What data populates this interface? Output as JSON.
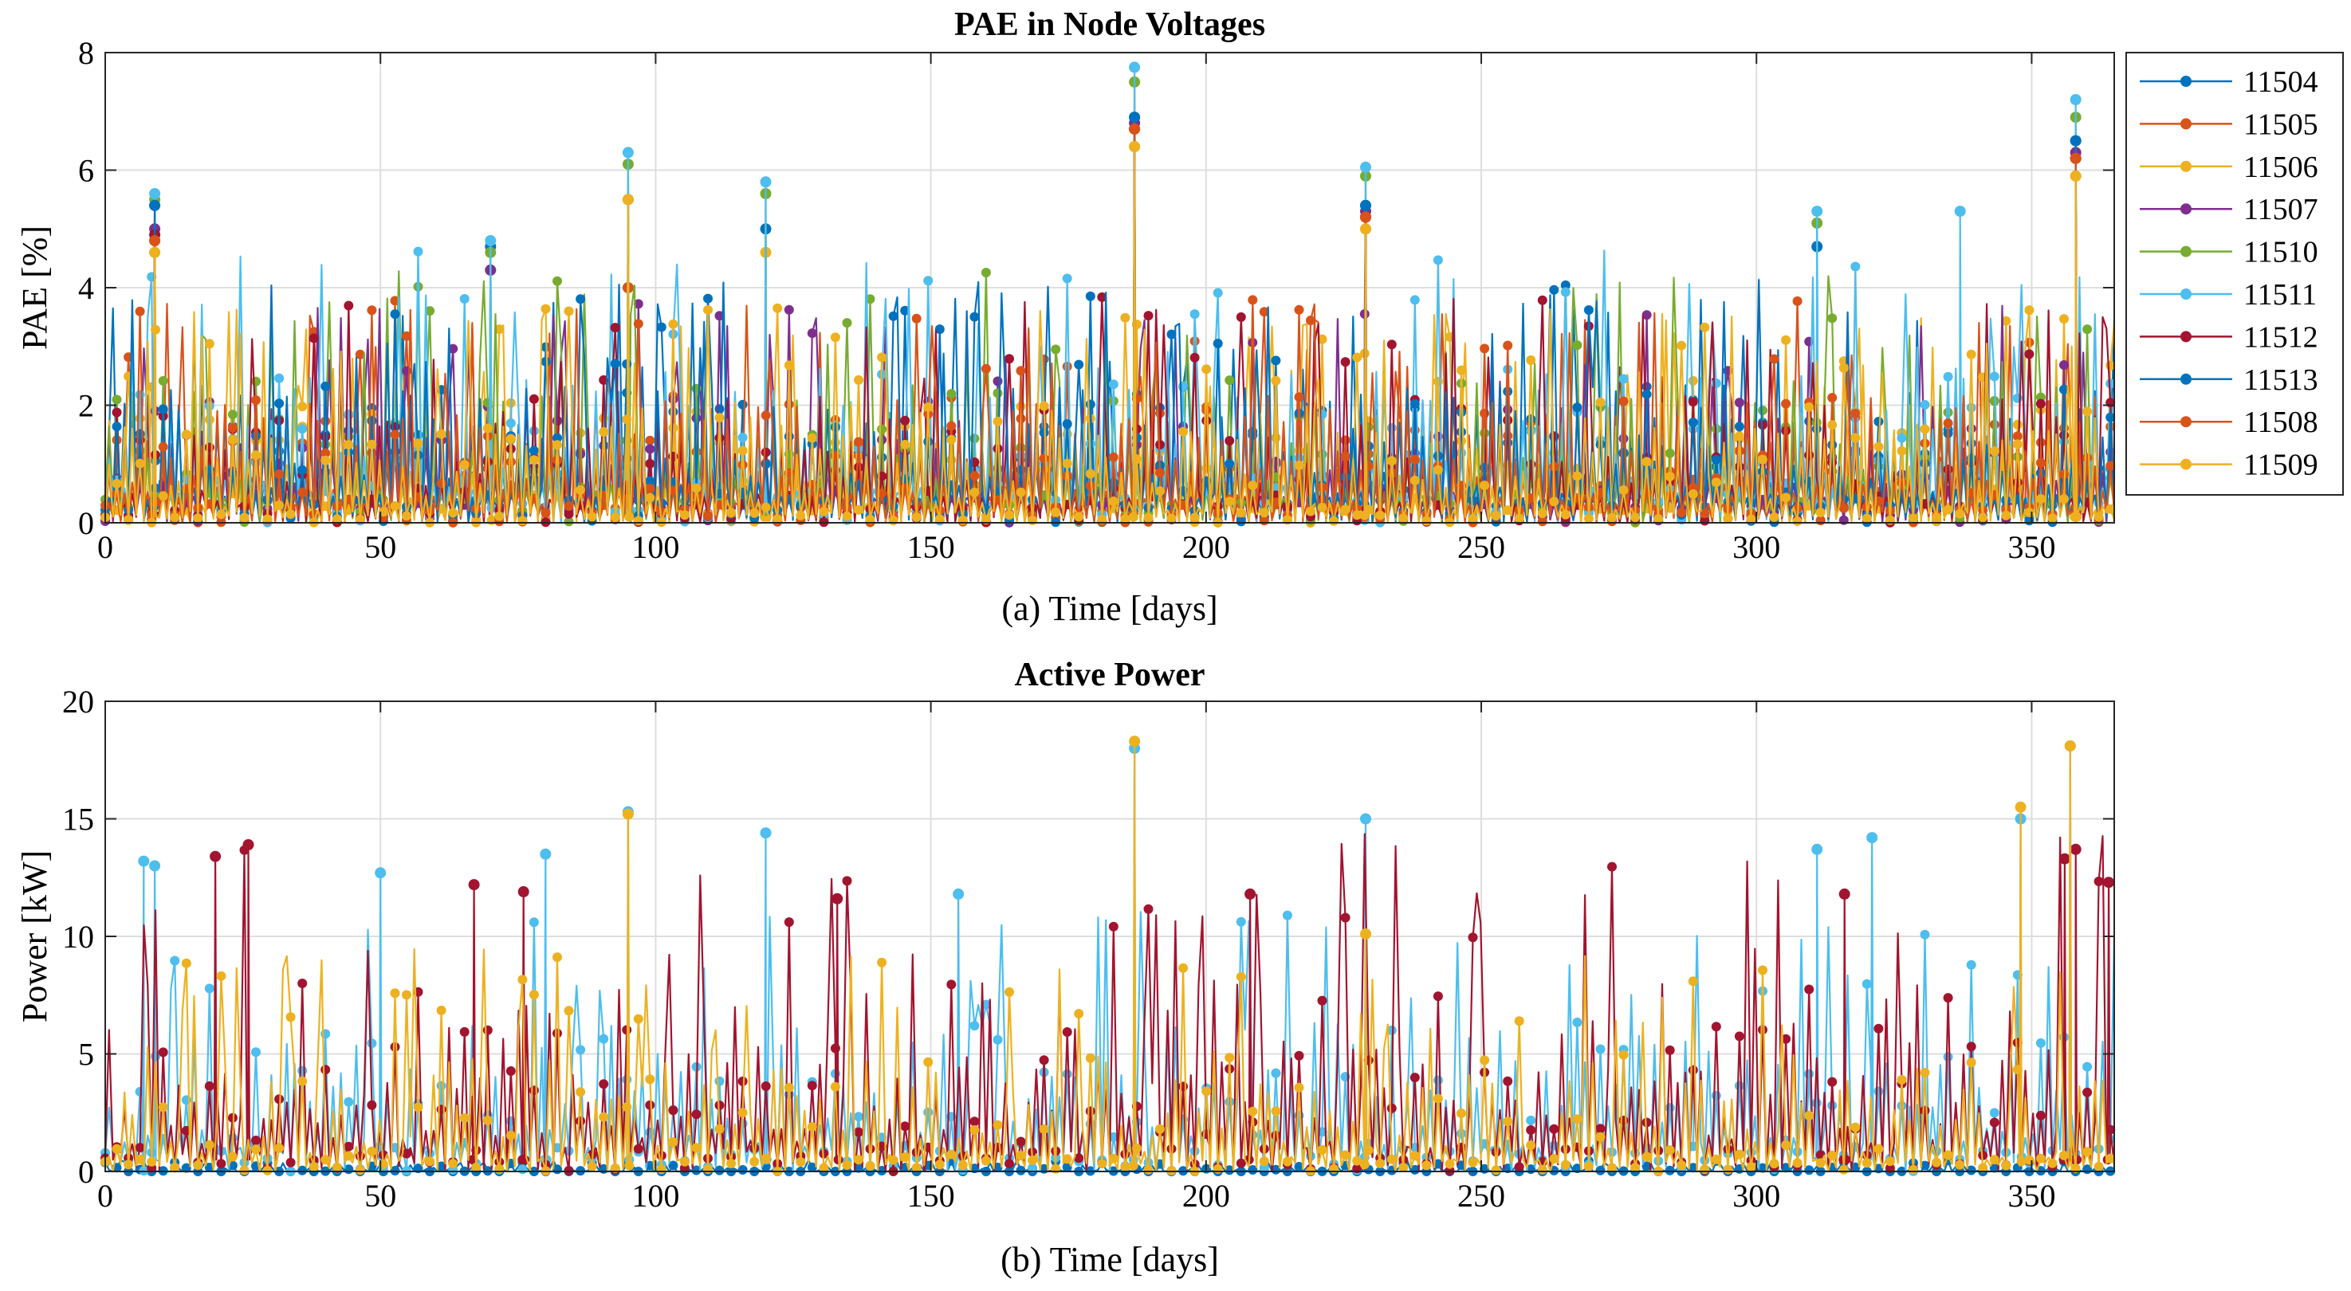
{
  "chart_data": [
    {
      "type": "line",
      "title": "PAE in Node Voltages",
      "xlabel": "(a) Time [days]",
      "ylabel": "PAE [%]",
      "xlim": [
        0,
        365
      ],
      "ylim": [
        0,
        8
      ],
      "xticks": [
        "0",
        "50",
        "100",
        "150",
        "200",
        "250",
        "300",
        "350"
      ],
      "yticks": [
        "0",
        "2",
        "4",
        "6",
        "8"
      ],
      "grid": true,
      "legend_position": "outside-right",
      "markers": "filled circles on every sample, stem-like dense spikes",
      "series": [
        {
          "name": "11504",
          "color": "#0072BD",
          "peaks": [
            [
              9,
              5.4
            ],
            [
              70,
              4.7
            ],
            [
              95,
              5.5
            ],
            [
              120,
              5.0
            ],
            [
              187,
              6.9
            ],
            [
              229,
              5.4
            ],
            [
              311,
              4.7
            ],
            [
              358,
              6.5
            ]
          ],
          "baseline": [
            0.4,
            2.6
          ]
        },
        {
          "name": "11505",
          "color": "#D95319",
          "peaks": [
            [
              9,
              4.8
            ],
            [
              95,
              4.0
            ],
            [
              187,
              6.7
            ],
            [
              229,
              5.2
            ],
            [
              358,
              6.2
            ]
          ],
          "baseline": [
            0.3,
            2.4
          ]
        },
        {
          "name": "11506",
          "color": "#EDB120",
          "peaks": [
            [
              9,
              4.6
            ],
            [
              70,
              4.3
            ],
            [
              95,
              5.5
            ],
            [
              120,
              4.6
            ],
            [
              187,
              6.4
            ],
            [
              229,
              5.0
            ],
            [
              358,
              5.9
            ]
          ],
          "baseline": [
            0.2,
            2.3
          ]
        },
        {
          "name": "11507",
          "color": "#7E2F8E",
          "peaks": [
            [
              9,
              5.0
            ],
            [
              70,
              4.3
            ],
            [
              187,
              6.8
            ],
            [
              229,
              5.3
            ],
            [
              358,
              6.3
            ]
          ],
          "baseline": [
            0.3,
            2.4
          ]
        },
        {
          "name": "11510",
          "color": "#77AC30",
          "peaks": [
            [
              9,
              5.5
            ],
            [
              70,
              4.6
            ],
            [
              95,
              6.1
            ],
            [
              120,
              5.6
            ],
            [
              187,
              7.5
            ],
            [
              229,
              5.9
            ],
            [
              311,
              5.1
            ],
            [
              358,
              6.9
            ]
          ],
          "baseline": [
            0.4,
            2.7
          ]
        },
        {
          "name": "11511",
          "color": "#4DBEEE",
          "peaks": [
            [
              9,
              5.6
            ],
            [
              70,
              4.8
            ],
            [
              95,
              6.3
            ],
            [
              120,
              5.8
            ],
            [
              187,
              7.75
            ],
            [
              229,
              6.05
            ],
            [
              311,
              5.3
            ],
            [
              337,
              5.3
            ],
            [
              358,
              7.2
            ]
          ],
          "baseline": [
            0.5,
            2.9
          ]
        },
        {
          "name": "11512",
          "color": "#A2142F",
          "peaks": [
            [
              9,
              4.9
            ],
            [
              187,
              6.7
            ],
            [
              229,
              5.2
            ],
            [
              358,
              6.2
            ]
          ],
          "baseline": [
            0.3,
            2.4
          ]
        },
        {
          "name": "11513",
          "color": "#0072BD",
          "peaks": [
            [
              9,
              5.4
            ],
            [
              187,
              6.9
            ],
            [
              229,
              5.4
            ],
            [
              358,
              6.5
            ]
          ],
          "baseline": [
            0.4,
            2.6
          ]
        },
        {
          "name": "11508",
          "color": "#D95319",
          "peaks": [
            [
              9,
              4.8
            ],
            [
              187,
              6.7
            ],
            [
              229,
              5.2
            ],
            [
              358,
              6.2
            ]
          ],
          "baseline": [
            0.3,
            2.4
          ]
        },
        {
          "name": "11509",
          "color": "#EDB120",
          "peaks": [
            [
              9,
              4.6
            ],
            [
              95,
              5.5
            ],
            [
              187,
              6.4
            ],
            [
              229,
              5.0
            ],
            [
              358,
              5.9
            ]
          ],
          "baseline": [
            0.2,
            2.3
          ]
        }
      ]
    },
    {
      "type": "line",
      "title": "Active Power",
      "xlabel": "(b) Time [days]",
      "ylabel": "Power [kW]",
      "xlim": [
        0,
        365
      ],
      "ylim": [
        0,
        20
      ],
      "xticks": [
        "0",
        "50",
        "100",
        "150",
        "200",
        "250",
        "300",
        "350"
      ],
      "yticks": [
        "0",
        "5",
        "10",
        "15",
        "20"
      ],
      "grid": true,
      "markers": "filled circles on every sample, stem-like dense spikes",
      "series": [
        {
          "name": "11504",
          "color": "#0072BD",
          "peaks": [],
          "baseline": [
            0,
            0.3
          ]
        },
        {
          "name": "11511",
          "color": "#4DBEEE",
          "peaks": [
            [
              7,
              13.2
            ],
            [
              9,
              13.0
            ],
            [
              50,
              12.7
            ],
            [
              80,
              13.5
            ],
            [
              95,
              15.3
            ],
            [
              120,
              14.4
            ],
            [
              155,
              11.8
            ],
            [
              187,
              18.0
            ],
            [
              229,
              15.0
            ],
            [
              311,
              13.7
            ],
            [
              321,
              14.2
            ],
            [
              348,
              15.0
            ],
            [
              357,
              18.1
            ]
          ],
          "baseline": [
            1,
            7
          ]
        },
        {
          "name": "11512",
          "color": "#A2142F",
          "peaks": [
            [
              20,
              13.4
            ],
            [
              26,
              13.9
            ],
            [
              67,
              12.2
            ],
            [
              76,
              11.9
            ],
            [
              133,
              11.6
            ],
            [
              208,
              11.8
            ],
            [
              316,
              11.8
            ],
            [
              356,
              13.3
            ],
            [
              358,
              13.7
            ],
            [
              364,
              12.3
            ]
          ],
          "baseline": [
            1,
            9
          ]
        },
        {
          "name": "11509",
          "color": "#EDB120",
          "peaks": [
            [
              95,
              15.2
            ],
            [
              187,
              18.3
            ],
            [
              229,
              10.1
            ],
            [
              348,
              15.5
            ],
            [
              357,
              18.1
            ]
          ],
          "baseline": [
            0.5,
            6
          ]
        }
      ]
    }
  ]
}
